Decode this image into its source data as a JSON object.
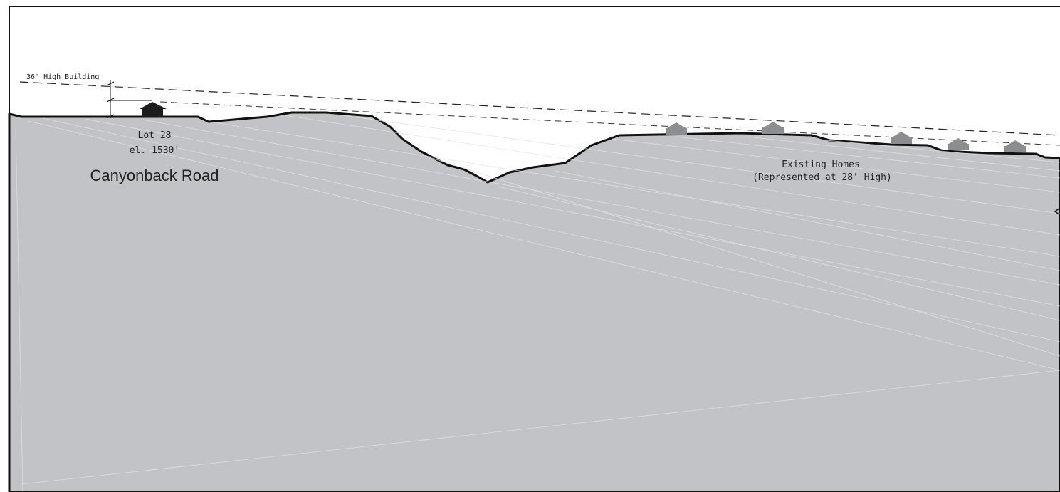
{
  "diagram": {
    "building_height_label": "36' High Building",
    "lot_label": "Lot 28",
    "elevation_label": "el. 1530'",
    "road_label": "Canyonback Road",
    "existing_homes_label": "Existing Homes",
    "existing_homes_note": "(Represented at 28' High)"
  },
  "colors": {
    "terrain_fill": "#c2c3c6",
    "terrain_outline": "#111111",
    "proposed_building": "#1c1c1c",
    "existing_home": "#8c8d90",
    "sight_line": "#222222",
    "background": "#ffffff"
  },
  "icons": {
    "proposed_building": "house-icon",
    "existing_home": "house-icon"
  }
}
